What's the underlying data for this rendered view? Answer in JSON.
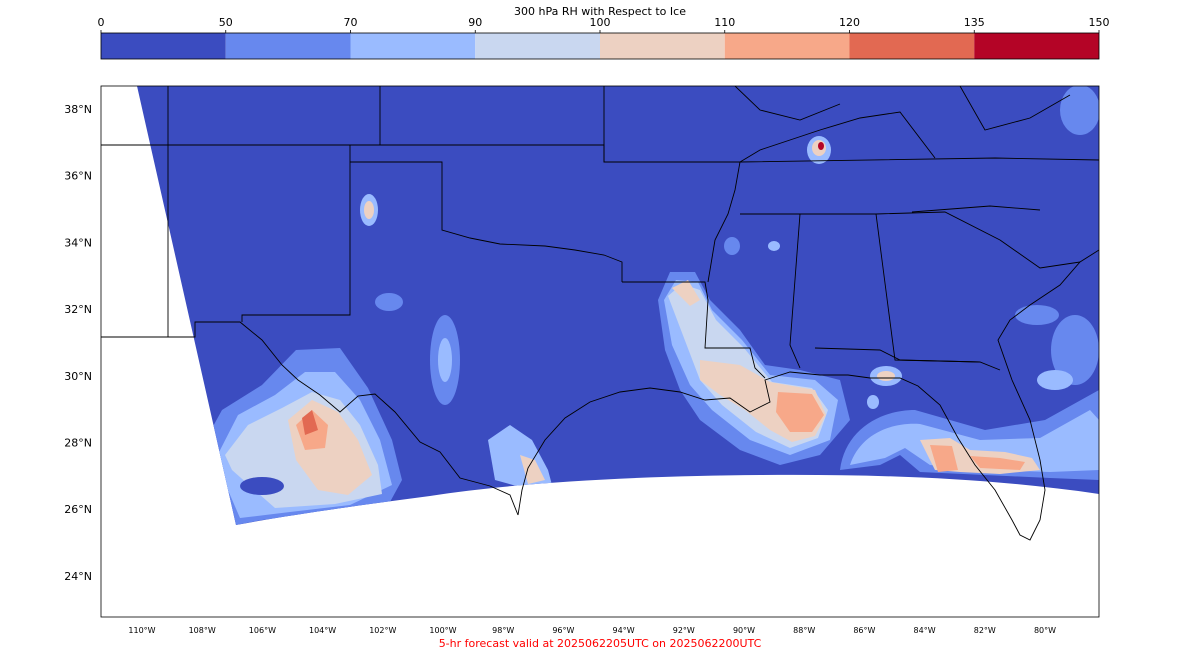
{
  "colorbar": {
    "title": "300 hPa RH with Respect to Ice",
    "bounds": [
      0,
      50,
      70,
      90,
      100,
      110,
      120,
      135,
      150
    ],
    "tick_labels": [
      "0",
      "50",
      "70",
      "90",
      "100",
      "110",
      "120",
      "135",
      "150"
    ],
    "colors": [
      "#3b4cc0",
      "#6788ee",
      "#9abbff",
      "#c9d7f0",
      "#edd1c2",
      "#f7a889",
      "#e26952",
      "#b40426"
    ]
  },
  "map": {
    "lat_range": [
      22.7,
      38.7
    ],
    "lon_range": [
      -111.3,
      -79.3
    ],
    "lat_labels": [
      "38°N",
      "36°N",
      "34°N",
      "32°N",
      "30°N",
      "28°N",
      "26°N",
      "24°N"
    ],
    "lon_labels": [
      "110°W",
      "108°W",
      "106°W",
      "104°W",
      "102°W",
      "100°W",
      "98°W",
      "96°W",
      "94°W",
      "92°W",
      "90°W",
      "88°W",
      "86°W",
      "84°W",
      "82°W",
      "80°W"
    ],
    "background_color": "#3b4cc0"
  },
  "footer": {
    "valid_text": "5-hr forecast valid at 2025062205UTC on 2025062200UTC",
    "color": "#ff0000"
  }
}
